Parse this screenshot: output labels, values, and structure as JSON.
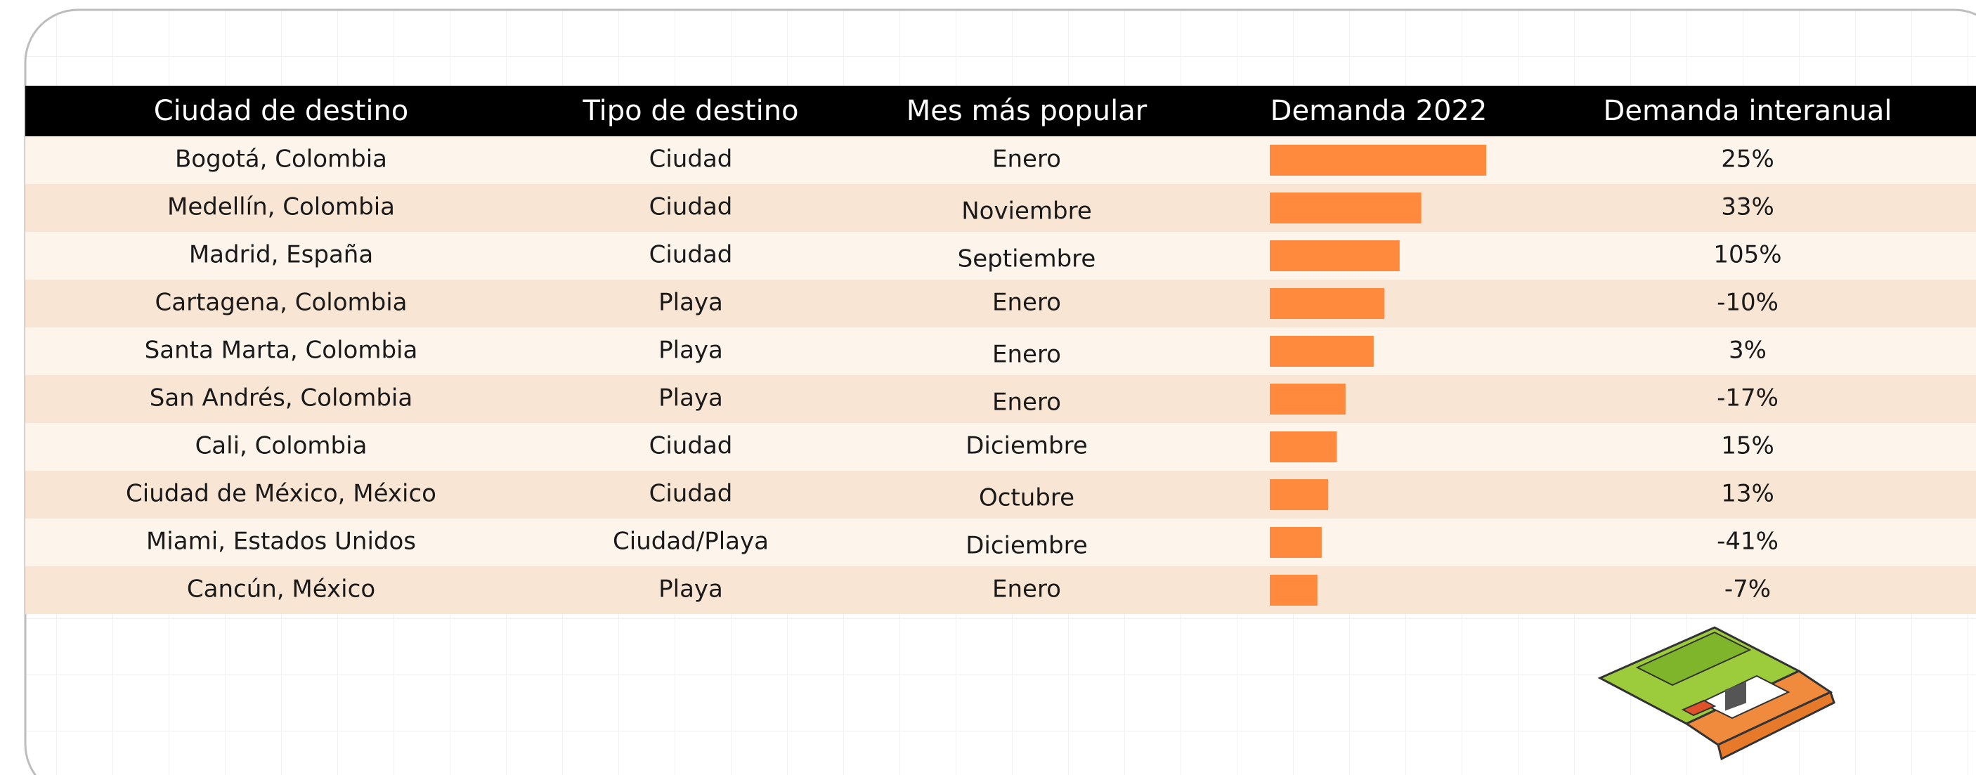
{
  "table": {
    "columns": [
      "Ciudad de destino",
      "Tipo de destino",
      "Mes más popular",
      "Demanda 2022",
      "Demanda interanual"
    ],
    "demand_lim": [
      0,
      100
    ],
    "rows": [
      [
        "Bogotá, Colombia",
        "Ciudad",
        "Enero",
        100,
        "25%"
      ],
      [
        "Medellín, Colombia",
        "Ciudad",
        "Noviembre",
        70,
        "33%"
      ],
      [
        "Madrid, España",
        "Ciudad",
        "Septiembre",
        60,
        "105%"
      ],
      [
        "Cartagena, Colombia",
        "Playa",
        "Enero",
        53,
        "-10%"
      ],
      [
        "Santa Marta, Colombia",
        "Playa",
        "Enero",
        48,
        "3%"
      ],
      [
        "San Andrés, Colombia",
        "Playa",
        "Enero",
        35,
        "-17%"
      ],
      [
        "Cali, Colombia",
        "Ciudad",
        "Diciembre",
        31,
        "15%"
      ],
      [
        "Ciudad de México, México",
        "Ciudad",
        "Octubre",
        27,
        "13%"
      ],
      [
        "Miami, Estados Unidos",
        "Ciudad/Playa",
        "Diciembre",
        24,
        "-41%"
      ],
      [
        "Cancún, México",
        "Playa",
        "Enero",
        22,
        "-7%"
      ]
    ]
  }
}
